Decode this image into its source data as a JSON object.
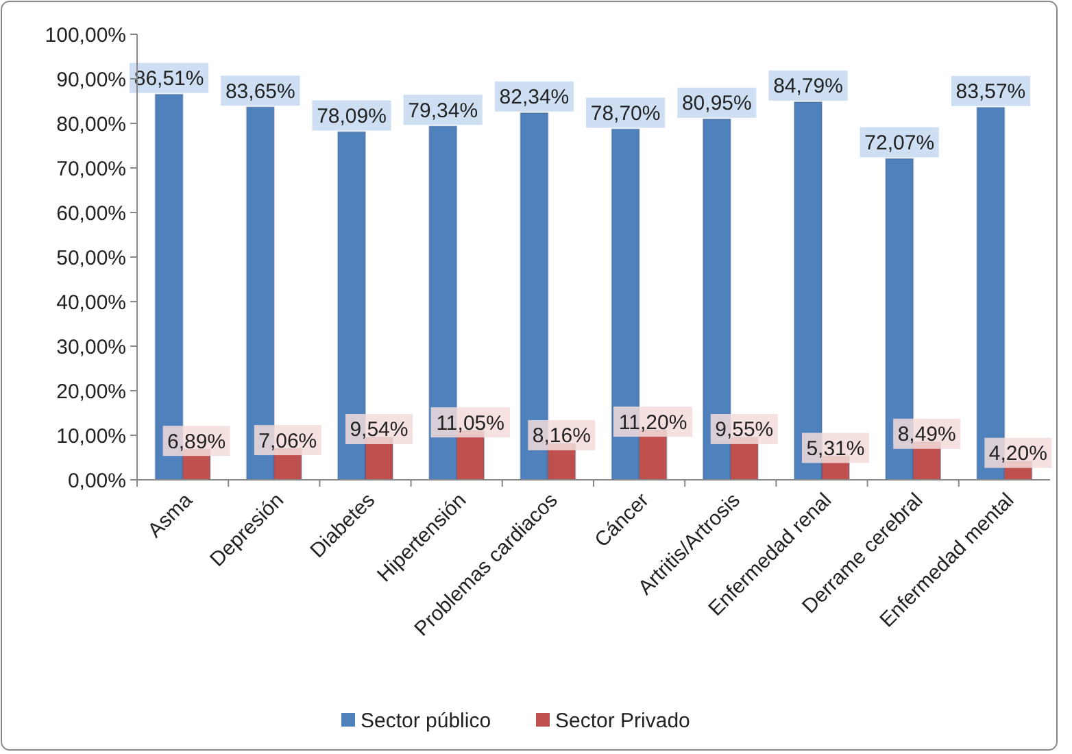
{
  "chart_data": {
    "type": "bar",
    "categories": [
      "Asma",
      "Depresión",
      "Diabetes",
      "Hipertensión",
      "Problemas cardiacos",
      "Cáncer",
      "Artritis/Artrosis",
      "Enfermedad renal",
      "Derrame cerebral",
      "Enfermedad mental"
    ],
    "series": [
      {
        "name": "Sector público",
        "color": "#4f81bd",
        "values": [
          86.51,
          83.65,
          78.09,
          79.34,
          82.34,
          78.7,
          80.95,
          84.79,
          72.07,
          83.57
        ],
        "value_labels": [
          "86,51%",
          "83,65%",
          "78,09%",
          "79,34%",
          "82,34%",
          "78,70%",
          "80,95%",
          "84,79%",
          "72,07%",
          "83,57%"
        ]
      },
      {
        "name": "Sector Privado",
        "color": "#c0504d",
        "values": [
          6.89,
          7.06,
          9.54,
          11.05,
          8.16,
          11.2,
          9.55,
          5.31,
          8.49,
          4.2
        ],
        "value_labels": [
          "6,89%",
          "7,06%",
          "9,54%",
          "11,05%",
          "8,16%",
          "11,20%",
          "9,55%",
          "5,31%",
          "8,49%",
          "4,20%"
        ]
      }
    ],
    "ylim": [
      0,
      100
    ],
    "yticks": [
      {
        "value": 0,
        "label": "0,00%"
      },
      {
        "value": 10,
        "label": "10,00%"
      },
      {
        "value": 20,
        "label": "20,00%"
      },
      {
        "value": 30,
        "label": "30,00%"
      },
      {
        "value": 40,
        "label": "40,00%"
      },
      {
        "value": 50,
        "label": "50,00%"
      },
      {
        "value": 60,
        "label": "60,00%"
      },
      {
        "value": 70,
        "label": "70,00%"
      },
      {
        "value": 80,
        "label": "80,00%"
      },
      {
        "value": 90,
        "label": "90,00%"
      },
      {
        "value": 100,
        "label": "100,00%"
      }
    ],
    "legend": "bottom"
  }
}
